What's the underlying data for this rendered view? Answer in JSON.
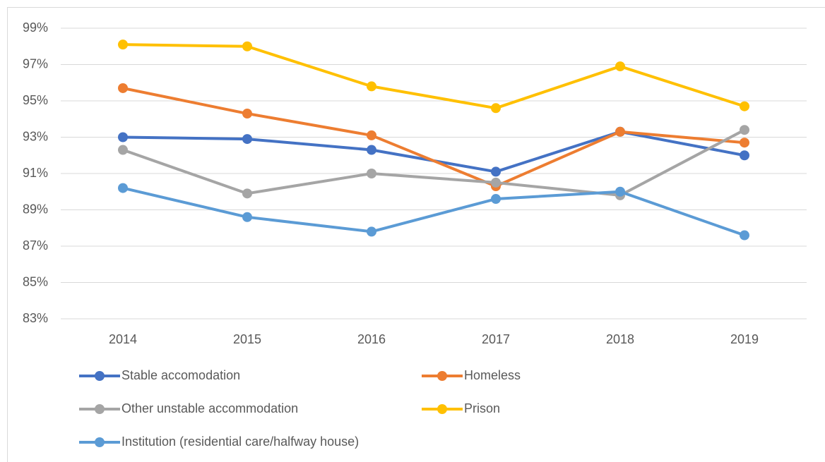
{
  "chart_data": {
    "type": "line",
    "categories": [
      "2014",
      "2015",
      "2016",
      "2017",
      "2018",
      "2019"
    ],
    "series": [
      {
        "name": "Stable accomodation",
        "color": "#4472c4",
        "values": [
          93.0,
          92.9,
          92.3,
          91.1,
          93.3,
          92.0
        ]
      },
      {
        "name": "Homeless",
        "color": "#ed7d31",
        "values": [
          95.7,
          94.3,
          93.1,
          90.3,
          93.3,
          92.7
        ]
      },
      {
        "name": "Other unstable accommodation",
        "color": "#a5a5a5",
        "values": [
          92.3,
          89.9,
          91.0,
          90.5,
          89.8,
          93.4
        ]
      },
      {
        "name": "Prison",
        "color": "#ffc000",
        "values": [
          98.1,
          98.0,
          95.8,
          94.6,
          96.9,
          94.7
        ]
      },
      {
        "name": "Institution (residential care/halfway house)",
        "color": "#5b9bd5",
        "values": [
          90.2,
          88.6,
          87.8,
          89.6,
          90.0,
          87.6
        ]
      }
    ],
    "ylim": [
      83,
      99
    ],
    "yticks": [
      {
        "value": 83,
        "label": "83%"
      },
      {
        "value": 85,
        "label": "85%"
      },
      {
        "value": 87,
        "label": "87%"
      },
      {
        "value": 89,
        "label": "89%"
      },
      {
        "value": 91,
        "label": "91%"
      },
      {
        "value": 93,
        "label": "93%"
      },
      {
        "value": 95,
        "label": "95%"
      },
      {
        "value": 97,
        "label": "97%"
      },
      {
        "value": 99,
        "label": "99%"
      }
    ],
    "grid": true,
    "legend": "bottom"
  }
}
